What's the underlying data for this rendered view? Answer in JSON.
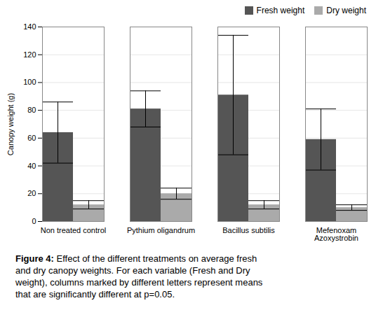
{
  "chart_data": {
    "type": "bar",
    "categories": [
      "Non treated control",
      "Pythium oligandrum",
      "Bacillus subtilis",
      "Mefenoxam\nAzoxystrobin"
    ],
    "series": [
      {
        "name": "Fresh weight",
        "color": "#555555",
        "values": [
          64,
          81,
          91,
          59
        ],
        "errors": [
          22,
          13,
          43,
          22
        ]
      },
      {
        "name": "Dry weight",
        "color": "#aaaaaa",
        "values": [
          12,
          20,
          12,
          10
        ],
        "errors": [
          3,
          4,
          3,
          2
        ]
      }
    ],
    "ylabel": "Canopy weight (g)",
    "ylim": [
      0,
      140
    ],
    "yticks": [
      0,
      20,
      40,
      60,
      80,
      100,
      120,
      140
    ],
    "grid": true,
    "legend": "upper right",
    "caption_label": "Figure 4:",
    "caption": "Effect of the different treatments on average fresh\nand dry canopy weights. For each variable (Fresh and Dry\nweight), columns marked by different letters represent means\nthat are significantly different at p=0.05."
  }
}
